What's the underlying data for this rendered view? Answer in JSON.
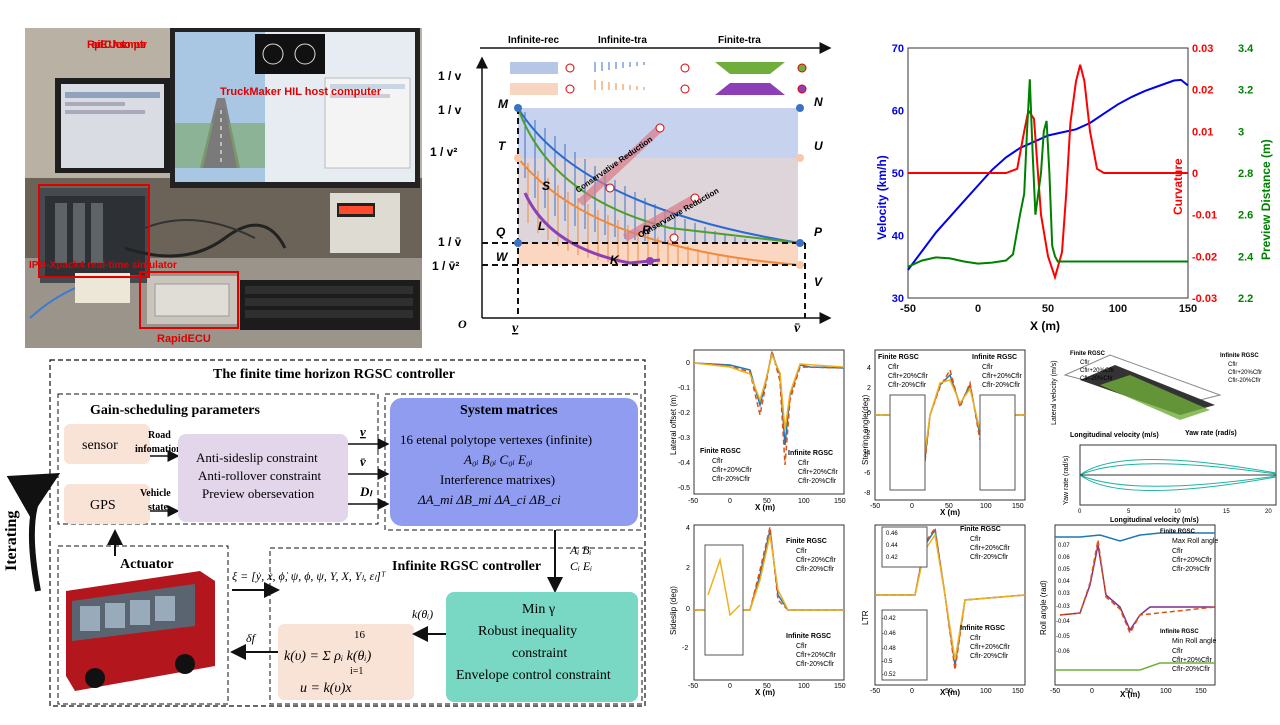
{
  "photo": {
    "labels": [
      "RapidECU host computer",
      "TruckMaker HIL host computer",
      "IPG-Xpack4 real-time simulator",
      "RapidECU"
    ]
  },
  "polytope": {
    "header": [
      "Infinite-rec",
      "Infinite-tra",
      "Finite-tra"
    ],
    "y_labels": [
      "1 / v",
      "1 / v",
      "1 / v²",
      "1 / v̄",
      "1 / v̄²"
    ],
    "x_labels": [
      "v",
      "v̄"
    ],
    "origin": "O",
    "points": [
      "M",
      "N",
      "T",
      "U",
      "S",
      "L",
      "R",
      "K",
      "Q",
      "P",
      "W",
      "V"
    ],
    "annotations": [
      "Conservative Reduction",
      "Conservative Reduction"
    ]
  },
  "top_chart": {
    "xlabel": "X (m)",
    "y1label": "Velocity (km/h)",
    "y2label": "Curvature",
    "y3label": "Preview Distance (m)",
    "xticks": [
      "-50",
      "0",
      "50",
      "100",
      "150"
    ],
    "y1ticks": [
      "30",
      "40",
      "50",
      "60",
      "70"
    ],
    "y2ticks": [
      "-0.03",
      "-0.02",
      "-0.01",
      "0",
      "0.01",
      "0.02",
      "0.03"
    ],
    "y3ticks": [
      "2.2",
      "2.4",
      "2.6",
      "2.8",
      "3",
      "3.2",
      "3.4"
    ]
  },
  "chart_data": {
    "type": "line",
    "xlim": [
      -50,
      150
    ],
    "series": [
      {
        "axis": "Velocity (km/h)",
        "ylim": [
          30,
          70
        ],
        "color": "#0000ee",
        "x": [
          -50,
          -30,
          -10,
          0,
          10,
          20,
          30,
          40,
          50,
          60,
          70,
          80,
          90,
          100,
          110,
          120,
          130,
          140,
          145,
          150
        ],
        "y": [
          34.5,
          40.5,
          45.5,
          48,
          50.5,
          52.5,
          54,
          55,
          56,
          56.5,
          57,
          58,
          59.5,
          61,
          62.2,
          63.2,
          64,
          64.8,
          64.9,
          64
        ]
      },
      {
        "axis": "Curvature",
        "ylim": [
          -0.03,
          0.03
        ],
        "color": "#ff0000",
        "x": [
          -50,
          20,
          28,
          33,
          36,
          40,
          45,
          50,
          55,
          60,
          63,
          66,
          70,
          73,
          76,
          80,
          85,
          90,
          100,
          150
        ],
        "y": [
          0,
          0,
          0.001,
          0.01,
          0.015,
          0.013,
          -0.01,
          -0.02,
          -0.025,
          -0.019,
          -0.005,
          0.012,
          0.022,
          0.026,
          0.022,
          0.01,
          0.001,
          0,
          0,
          0
        ]
      },
      {
        "axis": "Preview Distance (m)",
        "ylim": [
          2.2,
          3.4
        ],
        "color": "#008000",
        "x": [
          -50,
          -40,
          -30,
          -20,
          -10,
          0,
          10,
          20,
          25,
          30,
          33,
          35,
          37,
          39,
          41,
          43,
          45,
          47,
          49,
          51,
          53,
          55,
          57,
          60,
          150
        ],
        "y": [
          2.35,
          2.38,
          2.395,
          2.39,
          2.375,
          2.365,
          2.37,
          2.38,
          2.41,
          2.6,
          2.7,
          3.0,
          3.25,
          2.9,
          2.6,
          2.7,
          2.8,
          3.0,
          3.05,
          2.8,
          2.45,
          2.4,
          2.375,
          2.375,
          2.375
        ]
      }
    ]
  },
  "block": {
    "title": "The finite time horizon RGSC controller",
    "side": "Iterating",
    "gain_title": "Gain-scheduling parameters",
    "sensor": "sensor",
    "gps": "GPS",
    "road_label": "Road infomation",
    "vehicle_label": "Vehicle state",
    "constraints": [
      "Anti-sideslip constraint",
      "Anti-rollover constraint",
      "Preview obersevation"
    ],
    "param_v1": "v",
    "param_v2": "v̄",
    "param_d": "Dₗ",
    "sys_title": "System matrices",
    "sys_lines": [
      "16 etenal polytope vertexes (infinite)",
      "A₀ᵢ B₀ᵢ C₀ᵢ E₀ᵢ",
      "Interference matrixes)",
      "ΔA_mi ΔB_mi ΔA_ci ΔB_ci"
    ],
    "abce_1": "Aᵢ  Bᵢ",
    "abce_2": "Cᵢ  Eᵢ",
    "actuator": "Actuator",
    "state_vec": "ξ = [ẏ, ẋ, ϕ̇, ψ, ϕ, ψ, Y, X, Yₗ, εₗ]ᵀ",
    "infinite_title": "Infinite RGSC controller",
    "k_sum": "k(υ) = Σ ρᵢ k(θᵢ)",
    "k_top": "16",
    "k_bottom": "i=1",
    "u_eq": "u = k(υ)x",
    "ktheta": "k(θᵢ)",
    "delta": "δf",
    "opt_lines": [
      "Min γ",
      "Robust inequality",
      "constraint",
      "Envelope control constraint"
    ]
  },
  "grid": {
    "lateral": {
      "ylabel": "Lateral offset (m)",
      "xlabel": "X (m)",
      "yticks": [
        "0",
        "-0.1",
        "-0.2",
        "-0.3",
        "-0.4",
        "-0.5"
      ],
      "xticks": [
        "-50",
        "0",
        "50",
        "100",
        "150"
      ],
      "legend_a_title": "Finite RGSC",
      "legend_b_title": "Infinite RGSC",
      "legend": [
        "Cflr",
        "Cflr+20%Cflr",
        "Cflr-20%Cflr"
      ]
    },
    "steering": {
      "ylabel": "Steering angle(deg)",
      "xlabel": "X (m)",
      "yticks": [
        "4",
        "2",
        "0",
        "-2",
        "-4",
        "-6",
        "-8"
      ],
      "xticks": [
        "-50",
        "0",
        "50",
        "100",
        "150"
      ],
      "legend_a_title": "Finite RGSC",
      "legend_b_title": "Infinite RGSC",
      "legend": [
        "Cflr",
        "Cflr+20%Cflr",
        "Cflr-20%Cflr"
      ]
    },
    "surface": {
      "xlabel": "Longitudinal velocity (m/s)",
      "ylabel": "Lateral velocity (m/s)",
      "zlabel": "Yaw rate (rad/s)",
      "legend_a_title": "Finite RGSC",
      "legend_b_title": "Infinite RGSC",
      "legend": [
        "Cflr",
        "Cflr+20%Cflr",
        "Cflr-20%Cflr"
      ]
    },
    "yawrate": {
      "ylabel": "Yaw rate (rad/s)",
      "xlabel": "Longitudinal velocity (m/s)",
      "xticks": [
        "0",
        "5",
        "10",
        "15",
        "20"
      ]
    },
    "sideslip": {
      "ylabel": "Sideslip (deg)",
      "xlabel": "X (m)",
      "yticks": [
        "4",
        "2",
        "0",
        "-2"
      ],
      "xticks": [
        "-50",
        "0",
        "50",
        "100",
        "150"
      ],
      "legend_a_title": "Finite RGSC",
      "legend_b_title": "Infinite RGSC",
      "legend": [
        "Cflr",
        "Cflr+20%Cflr",
        "Cflr-20%Cflr"
      ]
    },
    "ltr": {
      "ylabel": "LTR",
      "xlabel": "X (m)",
      "yticks": [
        "0.46",
        "0.44",
        "0.42",
        "-0.42",
        "-0.46",
        "-0.48",
        "-0.5",
        "-0.52"
      ],
      "xticks": [
        "-50",
        "0",
        "50",
        "100",
        "150"
      ],
      "legend_a_title": "Finite RGSC",
      "legend_b_title": "Infinite RGSC",
      "legend": [
        "Cflr",
        "Cflr+20%Cflr",
        "Cflr-20%Cflr"
      ]
    },
    "roll": {
      "ylabel": "Roll angle (rad)",
      "xlabel": "X (m)",
      "yticks": [
        "0.07",
        "0.06",
        "0.05",
        "0.04",
        "0.03",
        "-0.03",
        "-0.04",
        "-0.05",
        "-0.06"
      ],
      "xticks": [
        "-50",
        "0",
        "50",
        "100",
        "150"
      ],
      "legend_a_title": "Finite RGSC",
      "legend_b_title": "Infinite RGSC",
      "legend_max": "Max Roll angle",
      "legend_min": "Min Roll angle",
      "legend": [
        "Cflr",
        "Cflr+20%Cflr",
        "Cflr-20%Cflr"
      ]
    }
  }
}
